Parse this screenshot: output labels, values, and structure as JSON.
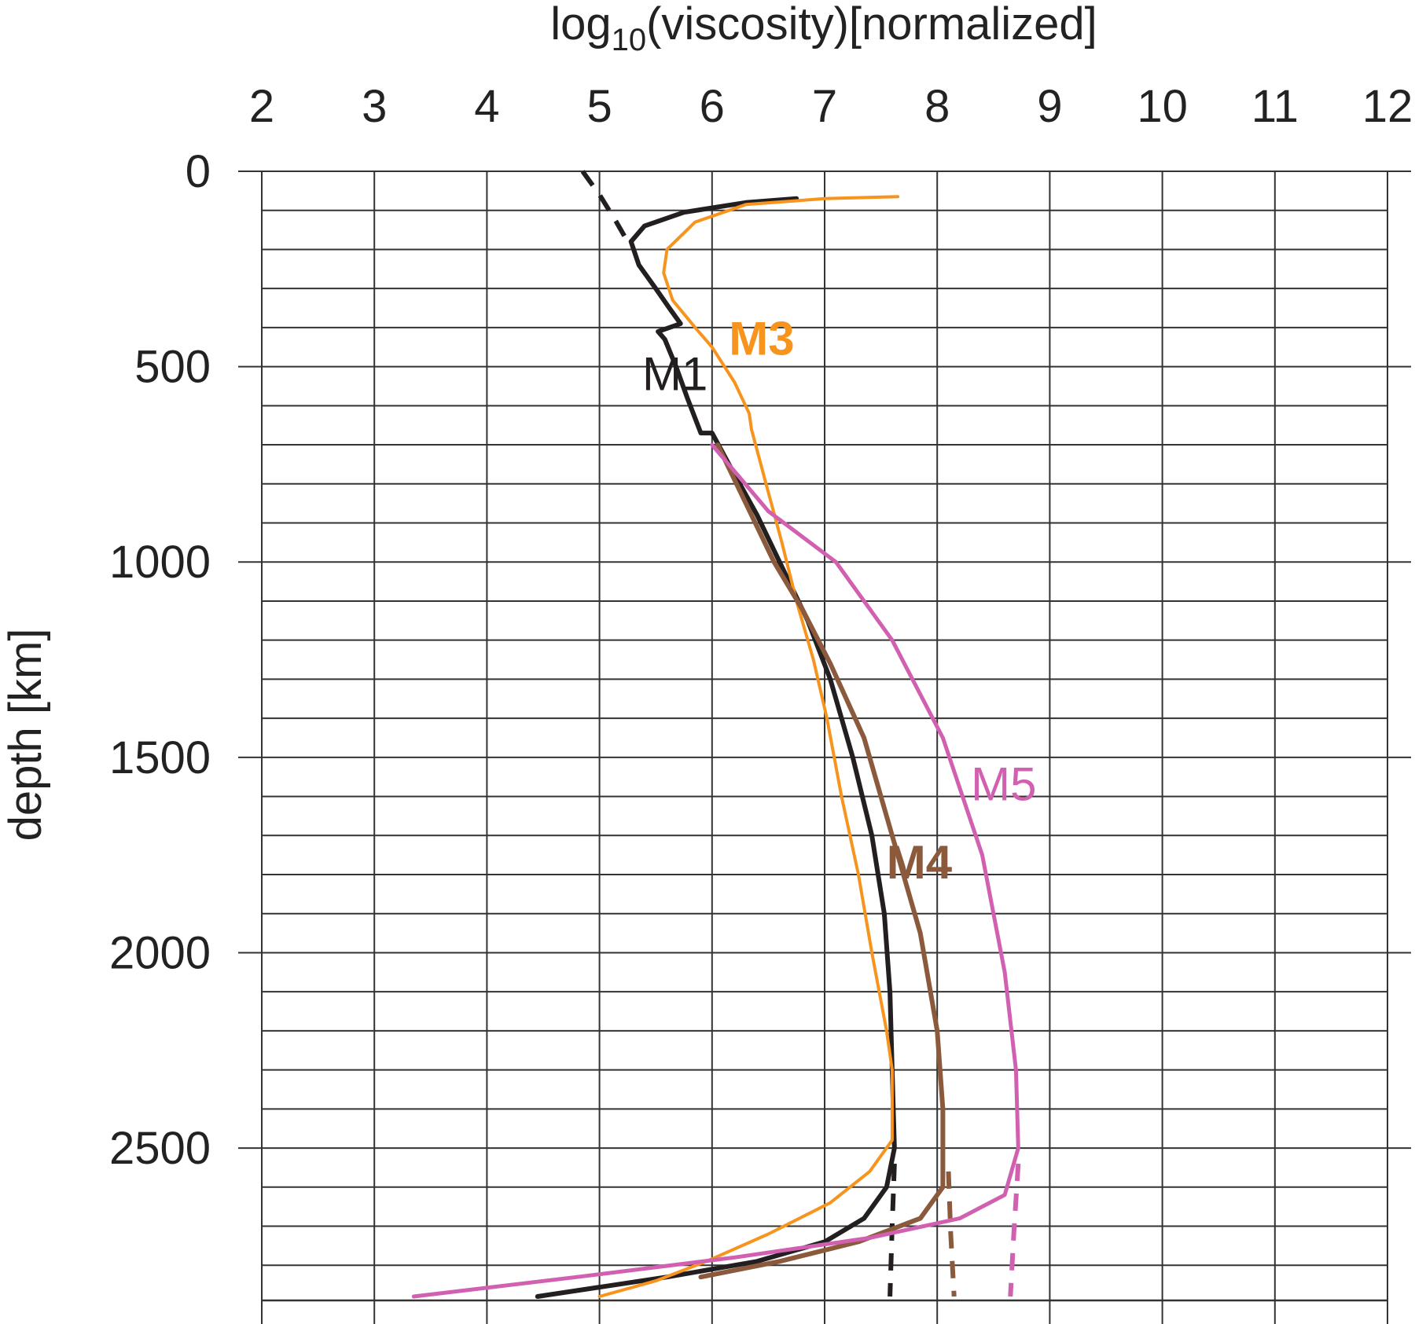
{
  "chart_data": {
    "type": "line",
    "xlabel": {
      "prefix": "log",
      "subscript": "10",
      "suffix": "(viscosity)[normalized]"
    },
    "ylabel": "depth [km]",
    "xlim": [
      2,
      12
    ],
    "ylim": [
      0,
      2890
    ],
    "y_inverted": true,
    "x_ticks": [
      2,
      3,
      4,
      5,
      6,
      7,
      8,
      9,
      10,
      11,
      12
    ],
    "y_ticks": [
      0,
      500,
      1000,
      1500,
      2000,
      2500
    ],
    "y_minor_step": 100,
    "x_axis_position": "top",
    "grid": true,
    "colors": {
      "M1": "#231f20",
      "M3": "#f7941d",
      "M4": "#8b5a3c",
      "M5": "#d260b0"
    },
    "series": [
      {
        "name": "M1",
        "color": "#231f20",
        "style": "solid",
        "points": [
          [
            6.75,
            70
          ],
          [
            6.3,
            80
          ],
          [
            5.75,
            105
          ],
          [
            5.4,
            140
          ],
          [
            5.28,
            180
          ],
          [
            5.35,
            240
          ],
          [
            5.5,
            300
          ],
          [
            5.62,
            350
          ],
          [
            5.72,
            390
          ],
          [
            5.52,
            410
          ],
          [
            5.58,
            430
          ],
          [
            5.68,
            500
          ],
          [
            5.78,
            580
          ],
          [
            5.9,
            670
          ],
          [
            6.0,
            670
          ],
          [
            6.15,
            750
          ],
          [
            6.4,
            880
          ],
          [
            6.6,
            1000
          ],
          [
            6.85,
            1150
          ],
          [
            7.05,
            1300
          ],
          [
            7.25,
            1500
          ],
          [
            7.42,
            1700
          ],
          [
            7.53,
            1900
          ],
          [
            7.58,
            2100
          ],
          [
            7.6,
            2300
          ],
          [
            7.62,
            2500
          ],
          [
            7.55,
            2600
          ],
          [
            7.35,
            2680
          ],
          [
            7.0,
            2740
          ],
          [
            6.4,
            2790
          ],
          [
            5.6,
            2830
          ],
          [
            4.45,
            2880
          ]
        ]
      },
      {
        "name": "M1 extrapolation",
        "color": "#231f20",
        "style": "dashed",
        "points": [
          [
            4.85,
            0
          ],
          [
            5.0,
            60
          ],
          [
            5.15,
            130
          ],
          [
            5.25,
            180
          ]
        ]
      },
      {
        "name": "M1 extrapolation",
        "color": "#231f20",
        "style": "dashed",
        "points": [
          [
            7.62,
            2540
          ],
          [
            7.6,
            2700
          ],
          [
            7.58,
            2880
          ]
        ]
      },
      {
        "name": "M3",
        "color": "#f7941d",
        "style": "solid",
        "points": [
          [
            7.65,
            65
          ],
          [
            7.0,
            70
          ],
          [
            6.3,
            85
          ],
          [
            5.85,
            130
          ],
          [
            5.6,
            200
          ],
          [
            5.57,
            260
          ],
          [
            5.65,
            330
          ],
          [
            5.85,
            400
          ],
          [
            6.0,
            450
          ],
          [
            6.2,
            540
          ],
          [
            6.33,
            620
          ],
          [
            6.35,
            660
          ],
          [
            6.48,
            800
          ],
          [
            6.62,
            950
          ],
          [
            6.75,
            1100
          ],
          [
            6.9,
            1250
          ],
          [
            7.02,
            1400
          ],
          [
            7.15,
            1600
          ],
          [
            7.3,
            1800
          ],
          [
            7.42,
            2000
          ],
          [
            7.55,
            2200
          ],
          [
            7.6,
            2300
          ],
          [
            7.6,
            2480
          ],
          [
            7.4,
            2560
          ],
          [
            7.05,
            2640
          ],
          [
            6.5,
            2720
          ],
          [
            5.95,
            2790
          ],
          [
            5.5,
            2840
          ],
          [
            5.0,
            2880
          ]
        ]
      },
      {
        "name": "M4",
        "color": "#8b5a3c",
        "style": "solid",
        "points": [
          [
            6.05,
            700
          ],
          [
            6.3,
            850
          ],
          [
            6.55,
            1000
          ],
          [
            6.8,
            1120
          ],
          [
            7.05,
            1260
          ],
          [
            7.35,
            1450
          ],
          [
            7.6,
            1700
          ],
          [
            7.85,
            1950
          ],
          [
            8.0,
            2200
          ],
          [
            8.05,
            2400
          ],
          [
            8.05,
            2600
          ],
          [
            7.85,
            2680
          ],
          [
            7.3,
            2740
          ],
          [
            6.6,
            2790
          ],
          [
            5.9,
            2830
          ]
        ]
      },
      {
        "name": "M4 extrapolation",
        "color": "#8b5a3c",
        "style": "dashed",
        "points": [
          [
            8.1,
            2560
          ],
          [
            8.12,
            2720
          ],
          [
            8.15,
            2880
          ]
        ]
      },
      {
        "name": "M5",
        "color": "#d260b0",
        "style": "solid",
        "points": [
          [
            6.0,
            700
          ],
          [
            6.5,
            870
          ],
          [
            7.1,
            1000
          ],
          [
            7.6,
            1200
          ],
          [
            8.05,
            1450
          ],
          [
            8.4,
            1750
          ],
          [
            8.6,
            2050
          ],
          [
            8.7,
            2300
          ],
          [
            8.72,
            2500
          ],
          [
            8.6,
            2620
          ],
          [
            8.2,
            2680
          ],
          [
            7.4,
            2730
          ],
          [
            6.2,
            2780
          ],
          [
            4.8,
            2830
          ],
          [
            3.35,
            2880
          ]
        ]
      },
      {
        "name": "M5 extrapolation",
        "color": "#d260b0",
        "style": "dashed",
        "points": [
          [
            8.72,
            2540
          ],
          [
            8.68,
            2720
          ],
          [
            8.65,
            2880
          ]
        ]
      }
    ],
    "annotations": [
      {
        "text": "M1",
        "x": 5.38,
        "y": 560,
        "color": "#231f20",
        "bold": false
      },
      {
        "text": "M3",
        "x": 6.15,
        "y": 470,
        "color": "#f7941d",
        "bold": true
      },
      {
        "text": "M4",
        "x": 7.55,
        "y": 1810,
        "color": "#8b5a3c",
        "bold": true
      },
      {
        "text": "M5",
        "x": 8.3,
        "y": 1610,
        "color": "#d260b0",
        "bold": false
      }
    ]
  }
}
